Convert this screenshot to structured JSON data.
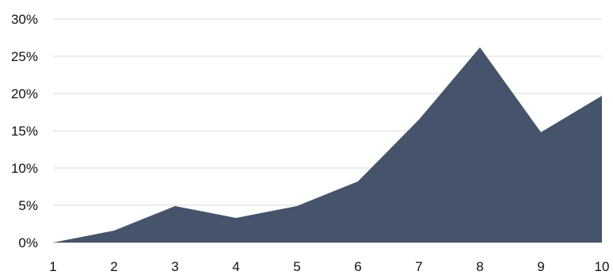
{
  "chart_data": {
    "type": "area",
    "title": "",
    "xlabel": "",
    "ylabel": "",
    "x": [
      1,
      2,
      3,
      4,
      5,
      6,
      7,
      8,
      9,
      10
    ],
    "x_tick_labels": [
      "1",
      "2",
      "3",
      "4",
      "5",
      "6",
      "7",
      "8",
      "9",
      "10"
    ],
    "series": [
      {
        "values": [
          0.0,
          1.6,
          4.9,
          3.3,
          4.9,
          8.2,
          16.5,
          26.2,
          14.8,
          19.7
        ]
      }
    ],
    "ylim": [
      0,
      30
    ],
    "y_ticks": [
      0,
      5,
      10,
      15,
      20,
      25,
      30
    ],
    "y_tick_labels": [
      "0%",
      "5%",
      "10%",
      "15%",
      "20%",
      "25%",
      "30%"
    ],
    "grid": true,
    "legend": "none",
    "colors": {
      "fill": "#45546a",
      "grid": "#d9d9d9",
      "text": "#111111"
    }
  }
}
